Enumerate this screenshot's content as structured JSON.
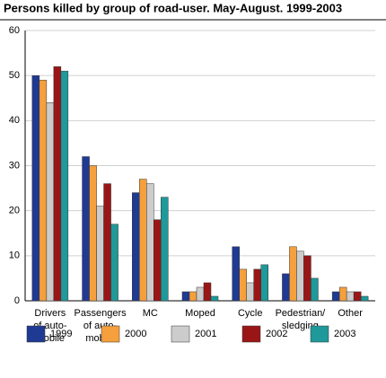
{
  "chart_data": {
    "type": "bar",
    "title": "Persons killed by group of road-user. May-August. 1999-2003",
    "categories": [
      [
        "Drivers",
        "of auto-",
        "mobile"
      ],
      [
        "Passengers",
        "of auto-",
        "mobile"
      ],
      [
        "MC"
      ],
      [
        "Moped"
      ],
      [
        "Cycle"
      ],
      [
        "Pedestrian/",
        "sledging"
      ],
      [
        "Other"
      ]
    ],
    "series": [
      {
        "name": "1999",
        "color": "#1f3a93",
        "values": [
          50,
          32,
          24,
          2,
          12,
          6,
          2
        ]
      },
      {
        "name": "2000",
        "color": "#f5a03c",
        "values": [
          49,
          30,
          27,
          2,
          7,
          12,
          3
        ]
      },
      {
        "name": "2001",
        "color": "#cccccc",
        "values": [
          44,
          21,
          26,
          3,
          4,
          11,
          2
        ]
      },
      {
        "name": "2002",
        "color": "#9a1616",
        "values": [
          52,
          26,
          18,
          4,
          7,
          10,
          2
        ]
      },
      {
        "name": "2003",
        "color": "#1f9999",
        "values": [
          51,
          17,
          23,
          1,
          8,
          5,
          1
        ]
      }
    ],
    "ylim": [
      0,
      60
    ],
    "yticks": [
      0,
      10,
      20,
      30,
      40,
      50,
      60
    ],
    "grid": true
  }
}
